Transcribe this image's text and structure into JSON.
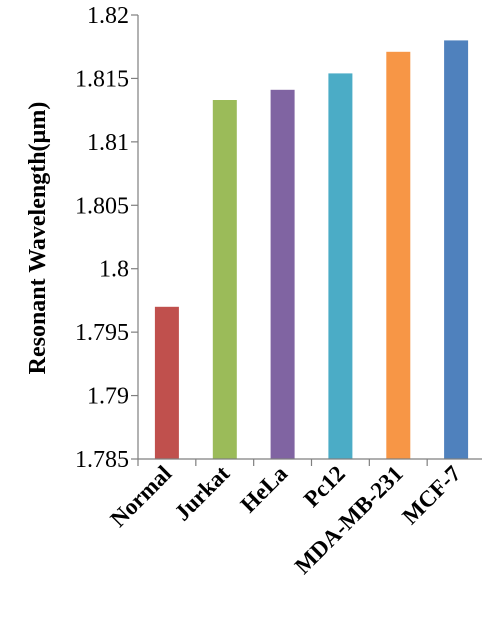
{
  "chart_data": {
    "type": "bar",
    "title": "",
    "xlabel": "",
    "ylabel": "Resonant Wavelength(µm)",
    "categories": [
      "Normal",
      "Jurkat",
      "HeLa",
      "Pc12",
      "MDA-MB-231",
      "MCF-7"
    ],
    "values": [
      1.797,
      1.8133,
      1.8141,
      1.8154,
      1.8171,
      1.818
    ],
    "colors": [
      "#C0504D",
      "#9BBB59",
      "#8064A2",
      "#4BACC6",
      "#F79646",
      "#4F81BD"
    ],
    "ylim": [
      1.785,
      1.82
    ],
    "yticks": [
      1.785,
      1.79,
      1.795,
      1.8,
      1.805,
      1.81,
      1.815,
      1.82
    ],
    "ytick_labels": [
      "1.785",
      "1.79",
      "1.795",
      "1.8",
      "1.805",
      "1.81",
      "1.815",
      "1.82"
    ],
    "grid": false,
    "legend": "none"
  }
}
